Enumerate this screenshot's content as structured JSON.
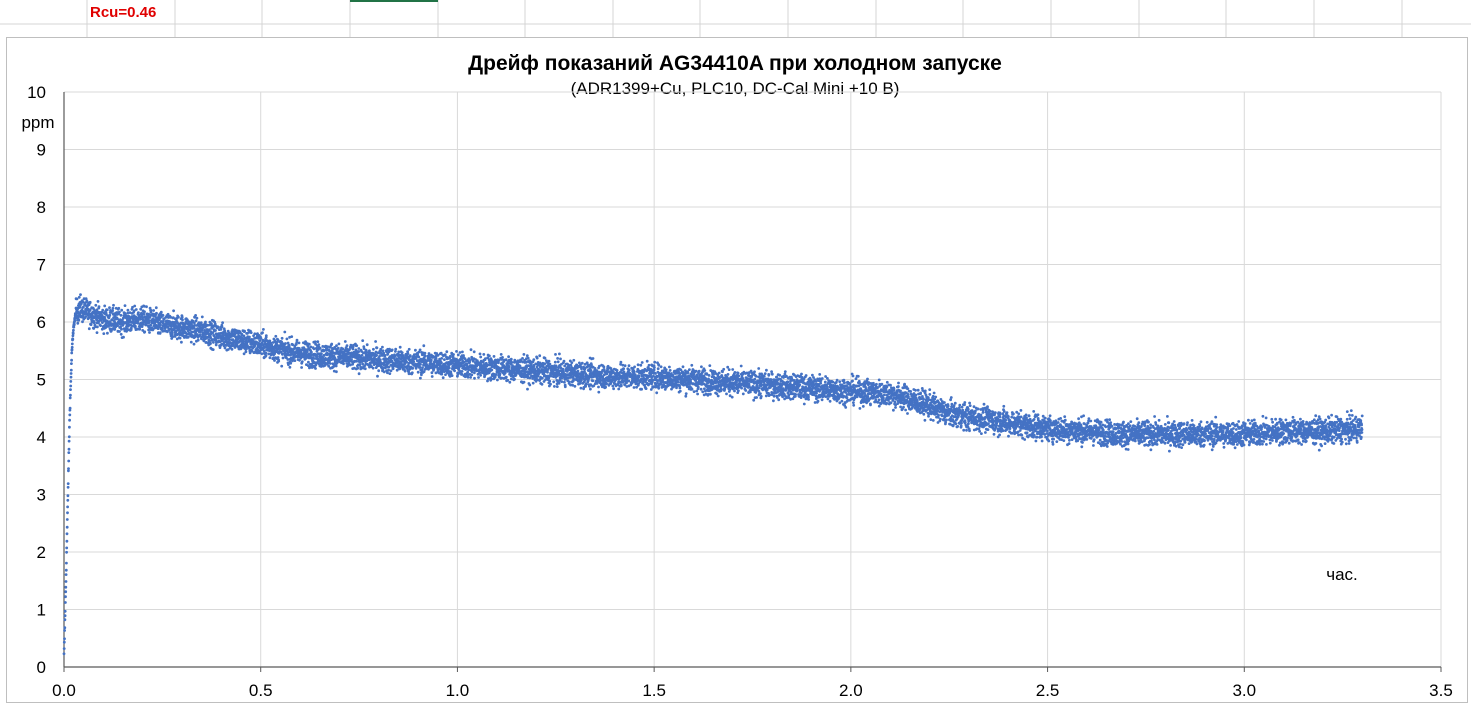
{
  "cell": {
    "label": "Rcu=0.46",
    "label_color": "#e00000"
  },
  "chart_data": {
    "type": "scatter",
    "title": "Дрейф показаний AG34410A при холодном запуске",
    "subtitle": "(ADR1399+Cu, PLC10, DC-Cal Mini +10 В)",
    "xlabel": "час.",
    "ylabel": "ppm",
    "xlim": [
      0,
      3.5
    ],
    "ylim": [
      0,
      10
    ],
    "x_ticks": [
      "0.0",
      "0.5",
      "1.0",
      "1.5",
      "2.0",
      "2.5",
      "3.0",
      "3.5"
    ],
    "y_ticks": [
      "0",
      "1",
      "2",
      "3",
      "4",
      "5",
      "6",
      "7",
      "8",
      "9",
      "10"
    ],
    "grid": true,
    "legend": "none",
    "marker_color": "#4472c4",
    "series": [
      {
        "x": [
          0.0,
          0.005,
          0.01,
          0.015,
          0.02,
          0.025,
          0.03,
          0.04,
          0.05,
          0.1,
          0.15,
          0.2,
          0.25,
          0.3,
          0.35,
          0.4,
          0.5,
          0.6,
          0.7,
          0.8,
          0.9,
          1.0,
          1.1,
          1.2,
          1.3,
          1.4,
          1.5,
          1.6,
          1.7,
          1.8,
          1.9,
          2.0,
          2.1,
          2.15,
          2.2,
          2.25,
          2.3,
          2.4,
          2.5,
          2.6,
          2.7,
          2.8,
          2.9,
          3.0,
          3.1,
          3.2,
          3.3
        ],
        "y": [
          0.2,
          1.5,
          3.0,
          4.5,
          5.5,
          5.95,
          6.15,
          6.25,
          6.2,
          6.05,
          6.0,
          6.05,
          5.95,
          5.9,
          5.85,
          5.75,
          5.6,
          5.45,
          5.4,
          5.35,
          5.3,
          5.25,
          5.2,
          5.15,
          5.1,
          5.05,
          5.05,
          5.0,
          4.95,
          4.9,
          4.85,
          4.8,
          4.75,
          4.65,
          4.55,
          4.4,
          4.35,
          4.25,
          4.15,
          4.1,
          4.05,
          4.05,
          4.05,
          4.05,
          4.1,
          4.1,
          4.15
        ],
        "noise_ppm": 0.15
      }
    ]
  }
}
